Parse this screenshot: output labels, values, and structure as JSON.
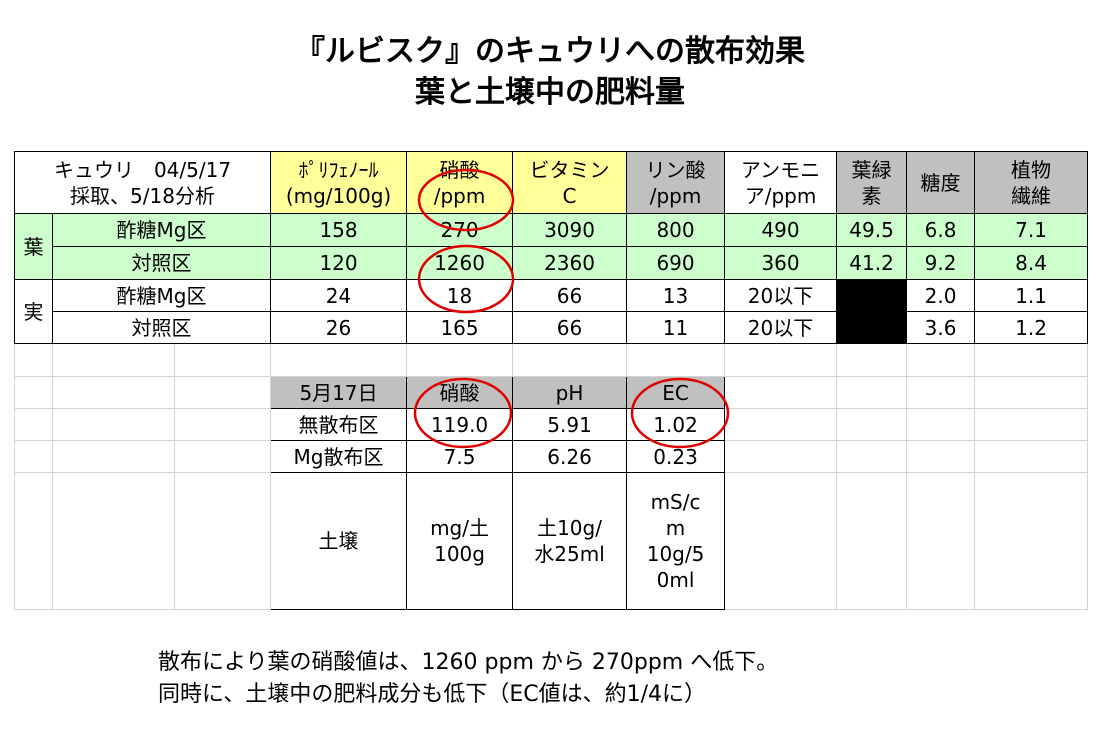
{
  "title": {
    "line1": "『ルビスク』のキュウリへの散布効果",
    "line2": "葉と土壌中の肥料量"
  },
  "leaf_table": {
    "corner": [
      "キュウリ　04/5/17",
      "採取、5/18分析"
    ],
    "headers": [
      [
        "ﾎﾟﾘﾌｪﾉｰﾙ",
        "(mg/100g)"
      ],
      [
        "硝酸",
        "/ppm"
      ],
      [
        "ビタミン",
        "C"
      ],
      [
        "リン酸",
        "/ppm"
      ],
      [
        "アンモニ",
        "ア/ppm"
      ],
      [
        "葉緑",
        "素"
      ],
      [
        "糖度"
      ],
      [
        "植物",
        "繊維"
      ]
    ],
    "groups": [
      {
        "name": "葉",
        "rows": [
          {
            "label": "酢糖Mg区",
            "cells": [
              "158",
              "270",
              "3090",
              "800",
              "490",
              "49.5",
              "6.8",
              "7.1"
            ]
          },
          {
            "label": "対照区",
            "cells": [
              "120",
              "1260",
              "2360",
              "690",
              "360",
              "41.2",
              "9.2",
              "8.4"
            ]
          }
        ]
      },
      {
        "name": "実",
        "rows": [
          {
            "label": "酢糖Mg区",
            "cells": [
              "24",
              "18",
              "66",
              "13",
              "20以下",
              "",
              "2.0",
              "1.1"
            ]
          },
          {
            "label": "対照区",
            "cells": [
              "26",
              "165",
              "66",
              "11",
              "20以下",
              "",
              "3.6",
              "1.2"
            ]
          }
        ]
      }
    ]
  },
  "soil_table": {
    "headers": [
      "5月17日",
      "硝酸",
      "pH",
      "EC"
    ],
    "rows": [
      {
        "label": "無散布区",
        "cells": [
          "119.0",
          "5.91",
          "1.02"
        ]
      },
      {
        "label": "Mg散布区",
        "cells": [
          "7.5",
          "6.26",
          "0.23"
        ]
      }
    ],
    "unit_label": "土壌",
    "units": [
      [
        "mg/土",
        "100g"
      ],
      [
        "土10g/",
        "水25ml"
      ],
      [
        "mS/c",
        "m",
        "10g/5",
        "0ml"
      ]
    ]
  },
  "notes": {
    "line1": "散布により葉の硝酸値は、1260 ppm から 270ppm へ低下。",
    "line2": "同時に、土壌中の肥料成分も低下（EC値は、約1/4に）"
  },
  "colors": {
    "header_yellow": "#ffff99",
    "header_gray": "#c0c0c0",
    "leaf_green": "#ccffcc",
    "highlight_circle": "#e00000"
  }
}
